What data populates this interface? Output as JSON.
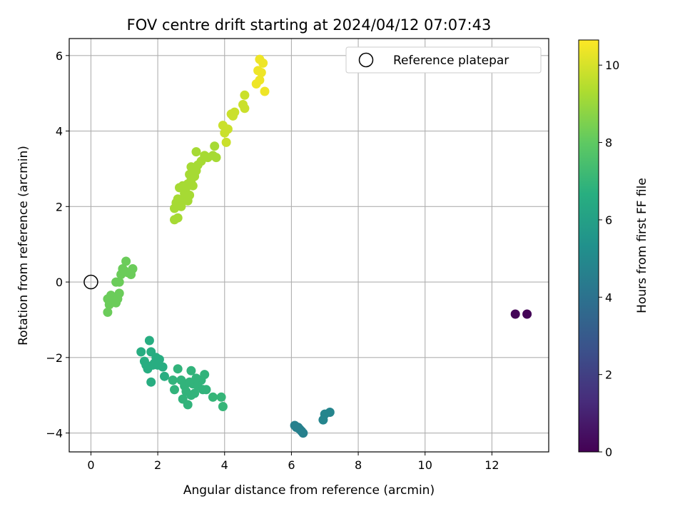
{
  "chart_data": {
    "type": "scatter",
    "title": "FOV centre drift starting at 2024/04/12 07:07:43",
    "xlabel": "Angular distance from reference (arcmin)",
    "ylabel": "Rotation from reference (arcmin)",
    "xlim": [
      -0.65,
      13.7
    ],
    "ylim": [
      -4.5,
      6.45
    ],
    "xticks": [
      0,
      2,
      4,
      6,
      8,
      10,
      12
    ],
    "yticks": [
      -4,
      -2,
      0,
      2,
      4,
      6
    ],
    "grid": true,
    "legend": {
      "location": "upper right",
      "entries": [
        "Reference platepar"
      ]
    },
    "reference_point": {
      "x": 0,
      "y": 0,
      "label": "Reference platepar"
    },
    "colorbar": {
      "label": "Hours from first FF file",
      "colormap": "viridis",
      "range": [
        0,
        10.65
      ],
      "ticks": [
        0,
        2,
        4,
        6,
        8,
        10
      ]
    },
    "series": [
      {
        "points": [
          [
            12.7,
            -0.85,
            0.1
          ],
          [
            13.05,
            -0.85,
            0.1
          ],
          [
            6.1,
            -3.8,
            4.6
          ],
          [
            6.2,
            -3.85,
            4.6
          ],
          [
            6.25,
            -3.9,
            4.6
          ],
          [
            6.3,
            -3.95,
            4.6
          ],
          [
            6.35,
            -4.0,
            4.6
          ],
          [
            6.15,
            -3.85,
            4.6
          ],
          [
            7.0,
            -3.5,
            4.8
          ],
          [
            7.15,
            -3.45,
            4.8
          ],
          [
            6.95,
            -3.65,
            4.8
          ],
          [
            1.5,
            -1.85,
            6.6
          ],
          [
            1.75,
            -1.55,
            6.6
          ],
          [
            1.8,
            -1.85,
            6.6
          ],
          [
            1.6,
            -2.1,
            6.6
          ],
          [
            1.7,
            -2.3,
            6.6
          ],
          [
            1.85,
            -2.2,
            6.6
          ],
          [
            1.95,
            -2.0,
            6.6
          ],
          [
            2.0,
            -2.2,
            6.6
          ],
          [
            2.15,
            -2.25,
            6.6
          ],
          [
            1.8,
            -2.65,
            6.6
          ],
          [
            2.2,
            -2.5,
            6.6
          ],
          [
            1.65,
            -2.2,
            6.6
          ],
          [
            2.05,
            -2.05,
            6.6
          ],
          [
            1.9,
            -2.15,
            6.6
          ],
          [
            2.45,
            -2.6,
            6.9
          ],
          [
            2.5,
            -2.85,
            6.9
          ],
          [
            2.6,
            -2.3,
            6.9
          ],
          [
            2.7,
            -2.6,
            6.9
          ],
          [
            2.8,
            -2.75,
            6.9
          ],
          [
            2.75,
            -3.1,
            6.9
          ],
          [
            2.85,
            -2.9,
            6.9
          ],
          [
            2.9,
            -3.25,
            6.9
          ],
          [
            3.0,
            -2.35,
            6.9
          ],
          [
            3.05,
            -2.7,
            6.9
          ],
          [
            3.1,
            -2.95,
            6.9
          ],
          [
            3.2,
            -2.75,
            6.9
          ],
          [
            3.3,
            -2.6,
            6.9
          ],
          [
            3.35,
            -2.85,
            6.9
          ],
          [
            3.4,
            -2.45,
            6.9
          ],
          [
            3.45,
            -2.85,
            6.9
          ],
          [
            3.0,
            -3.0,
            6.9
          ],
          [
            3.15,
            -2.55,
            6.9
          ],
          [
            2.95,
            -2.65,
            6.9
          ],
          [
            3.65,
            -3.05,
            7.0
          ],
          [
            3.9,
            -3.05,
            7.0
          ],
          [
            3.95,
            -3.3,
            7.0
          ],
          [
            0.5,
            -0.8,
            8.2
          ],
          [
            0.55,
            -0.6,
            8.2
          ],
          [
            0.5,
            -0.45,
            8.2
          ],
          [
            0.6,
            -0.35,
            8.2
          ],
          [
            0.7,
            -0.5,
            8.2
          ],
          [
            0.75,
            -0.55,
            8.2
          ],
          [
            0.8,
            -0.45,
            8.2
          ],
          [
            0.85,
            -0.3,
            8.2
          ],
          [
            0.75,
            0.0,
            8.2
          ],
          [
            0.85,
            0.0,
            8.2
          ],
          [
            0.9,
            0.2,
            8.2
          ],
          [
            0.95,
            0.35,
            8.2
          ],
          [
            1.0,
            0.3,
            8.2
          ],
          [
            1.05,
            0.55,
            8.2
          ],
          [
            1.1,
            0.25,
            8.2
          ],
          [
            1.2,
            0.2,
            8.2
          ],
          [
            1.25,
            0.35,
            8.2
          ],
          [
            2.5,
            1.65,
            9.2
          ],
          [
            2.6,
            1.7,
            9.2
          ],
          [
            2.5,
            1.95,
            9.2
          ],
          [
            2.55,
            2.1,
            9.2
          ],
          [
            2.6,
            2.2,
            9.2
          ],
          [
            2.7,
            2.0,
            9.2
          ],
          [
            2.75,
            2.2,
            9.2
          ],
          [
            2.8,
            2.35,
            9.2
          ],
          [
            2.85,
            2.5,
            9.2
          ],
          [
            2.9,
            2.15,
            9.2
          ],
          [
            2.95,
            2.3,
            9.2
          ],
          [
            2.75,
            2.55,
            9.2
          ],
          [
            2.9,
            2.6,
            9.2
          ],
          [
            3.0,
            2.7,
            9.2
          ],
          [
            3.05,
            2.55,
            9.2
          ],
          [
            2.95,
            2.85,
            9.2
          ],
          [
            3.0,
            3.05,
            9.2
          ],
          [
            3.1,
            2.8,
            9.2
          ],
          [
            3.15,
            2.95,
            9.2
          ],
          [
            3.2,
            3.1,
            9.2
          ],
          [
            3.15,
            3.45,
            9.2
          ],
          [
            3.3,
            3.2,
            9.2
          ],
          [
            3.4,
            3.35,
            9.2
          ],
          [
            3.5,
            3.3,
            9.2
          ],
          [
            3.65,
            3.35,
            9.2
          ],
          [
            3.7,
            3.6,
            9.2
          ],
          [
            3.75,
            3.3,
            9.2
          ],
          [
            2.55,
            2.0,
            9.2
          ],
          [
            2.65,
            2.5,
            9.2
          ],
          [
            3.95,
            4.15,
            9.8
          ],
          [
            4.0,
            3.95,
            9.8
          ],
          [
            4.05,
            3.7,
            9.8
          ],
          [
            4.1,
            4.05,
            9.8
          ],
          [
            4.2,
            4.45,
            9.8
          ],
          [
            4.25,
            4.4,
            9.8
          ],
          [
            4.3,
            4.5,
            9.8
          ],
          [
            4.55,
            4.7,
            9.8
          ],
          [
            4.6,
            4.6,
            9.8
          ],
          [
            4.6,
            4.95,
            9.8
          ],
          [
            4.95,
            5.25,
            10.4
          ],
          [
            5.0,
            5.6,
            10.4
          ],
          [
            5.05,
            5.35,
            10.4
          ],
          [
            5.1,
            5.55,
            10.4
          ],
          [
            5.05,
            5.9,
            10.4
          ],
          [
            5.15,
            5.8,
            10.4
          ],
          [
            5.2,
            5.05,
            10.4
          ]
        ]
      }
    ]
  }
}
